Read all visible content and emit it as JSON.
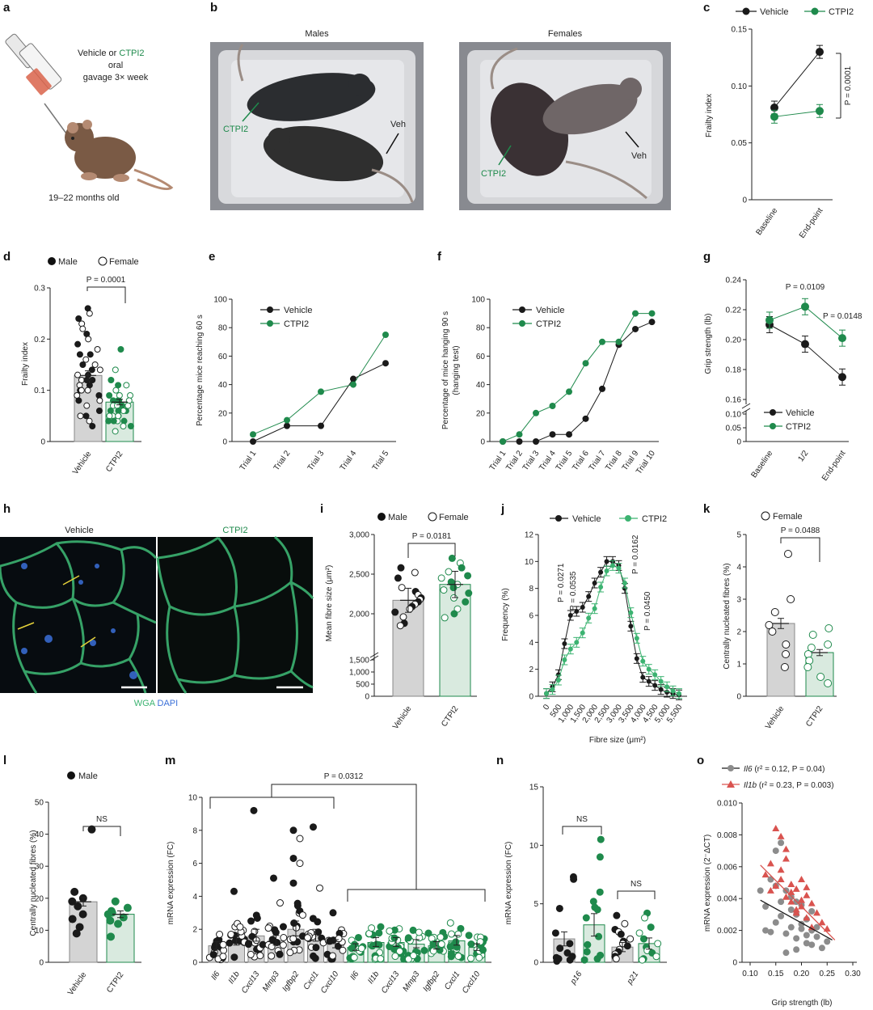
{
  "colors": {
    "vehicle": "#1a1a1a",
    "ctpi2": "#1f8a4c",
    "bar_vehicle": "#d4d4d4",
    "bar_ctpi2": "#d9eadf",
    "il1b_red": "#d9534f",
    "il6_grey": "#8c8c8c",
    "wga": "#3cb371",
    "dapi": "#3a6fd8"
  },
  "panels": {
    "a": {
      "label": "a",
      "line1": "Vehicle or ",
      "line1_green": "CTPI2",
      "line2": "oral",
      "line3": "gavage 3× week",
      "age": "19–22 months old"
    },
    "b": {
      "label": "b",
      "males": "Males",
      "females": "Females",
      "ctpi2": "CTPI2",
      "veh": "Veh"
    },
    "c": {
      "label": "c",
      "legend": [
        "Vehicle",
        "CTPI2"
      ],
      "ylabel": "Frailty index",
      "yticks": [
        "0",
        "0.05",
        "0.10",
        "0.15"
      ],
      "xticks": [
        "Baseline",
        "End-point"
      ],
      "pval": "P = 0.0001"
    },
    "d": {
      "label": "d",
      "legend": [
        "Male",
        "Female"
      ],
      "ylabel": "Frailty index",
      "yticks": [
        "0",
        "0.1",
        "0.2",
        "0.3"
      ],
      "xticks": [
        "Vehicle",
        "CTPI2"
      ],
      "pval": "P = 0.0001"
    },
    "e": {
      "label": "e",
      "legend": [
        "Vehicle",
        "CTPI2"
      ],
      "ylabel": "Percentage mice reaching 60 s",
      "yticks": [
        "0",
        "20",
        "40",
        "60",
        "80",
        "100"
      ],
      "xticks": [
        "Trial 1",
        "Trial 2",
        "Trial 3",
        "Trial 4",
        "Trial 5"
      ]
    },
    "f": {
      "label": "f",
      "legend": [
        "Vehicle",
        "CTPI2"
      ],
      "ylabel1": "Percentage of mice hanging 90 s",
      "ylabel2": "(hanging test)",
      "yticks": [
        "0",
        "20",
        "40",
        "60",
        "80",
        "100"
      ],
      "xticks": [
        "Trial 1",
        "Trial 2",
        "Trial 3",
        "Trial 4",
        "Trial 5",
        "Trial 6",
        "Trial 7",
        "Trial 8",
        "Trial 9",
        "Trial 10"
      ]
    },
    "g": {
      "label": "g",
      "legend": [
        "Vehicle",
        "CTPI2"
      ],
      "ylabel": "Grip strength (lb)",
      "yticks": [
        "0",
        "0.05",
        "0.10",
        "0.16",
        "0.18",
        "0.20",
        "0.22",
        "0.24"
      ],
      "xticks": [
        "Baseline",
        "1/2",
        "End-point"
      ],
      "pval1": "P = 0.0109",
      "pval2": "P = 0.0148"
    },
    "h": {
      "label": "h",
      "left_title": "Vehicle",
      "right_title": "CTPI2",
      "stain_wga": "WGA",
      "stain_dapi": "DAPI"
    },
    "i": {
      "label": "i",
      "legend": [
        "Male",
        "Female"
      ],
      "ylabel": "Mean fibre size (μm²)",
      "yticks": [
        "0",
        "500",
        "1,000",
        "1,500",
        "2,000",
        "2,500",
        "3,000"
      ],
      "xticks": [
        "Vehicle",
        "CTPI2"
      ],
      "pval": "P = 0.0181"
    },
    "j": {
      "label": "j",
      "legend": [
        "Vehicle",
        "CTPI2"
      ],
      "ylabel": "Frequency (%)",
      "xlabel": "Fibre size (μm²)",
      "yticks": [
        "0",
        "2",
        "4",
        "6",
        "8",
        "10",
        "12"
      ],
      "xticks": [
        "0",
        "500",
        "1,000",
        "1,500",
        "2,000",
        "2,500",
        "3,000",
        "3,500",
        "4,000",
        "4,500",
        "5,000",
        "5,500"
      ],
      "pvals": [
        "P = 0.0271",
        "P = 0.0535",
        "P = 0.0162",
        "P = 0.0450"
      ]
    },
    "k": {
      "label": "k",
      "legend": [
        "Female"
      ],
      "ylabel": "Centrally nucleated fibres (%)",
      "yticks": [
        "0",
        "1",
        "2",
        "3",
        "4",
        "5"
      ],
      "xticks": [
        "Vehicle",
        "CTPI2"
      ],
      "pval": "P = 0.0488"
    },
    "l": {
      "label": "l",
      "legend": [
        "Male"
      ],
      "ylabel": "Centrally nucleated fibres (%)",
      "yticks": [
        "0",
        "10",
        "20",
        "30",
        "40",
        "50"
      ],
      "xticks": [
        "Vehicle",
        "CTPI2"
      ],
      "ns": "NS"
    },
    "m": {
      "label": "m",
      "ylabel": "mRNA expression (FC)",
      "yticks": [
        "0",
        "2",
        "4",
        "6",
        "8",
        "10"
      ],
      "genes": [
        "Il6",
        "Il1b",
        "Cxcl13",
        "Mmp3",
        "Igfbp2",
        "Cxcl1",
        "Cxcl10"
      ],
      "pval": "P = 0.0312"
    },
    "n": {
      "label": "n",
      "ylabel": "mRNA expression (FC)",
      "yticks": [
        "0",
        "5",
        "10",
        "15"
      ],
      "genes": [
        "p16",
        "p21"
      ],
      "ns1": "NS",
      "ns2": "NS"
    },
    "o": {
      "label": "o",
      "legend_il6_gene": "Il6",
      "legend_il6_stats": " (r² = 0.12, P = 0.04)",
      "legend_il1b_gene": "Il1b",
      "legend_il1b_stats": " (r² = 0.23, P = 0.003)",
      "ylabel": "mRNA expression (2⁻ΔCT)",
      "xlabel": "Grip strength (lb)",
      "yticks": [
        "0",
        "0.002",
        "0.004",
        "0.006",
        "0.008",
        "0.010"
      ],
      "xticks": [
        "0.10",
        "0.15",
        "0.20",
        "0.25",
        "0.30"
      ]
    }
  },
  "chart_data": [
    {
      "panel": "c",
      "type": "line",
      "categories": [
        "Baseline",
        "End-point"
      ],
      "ylim": [
        0,
        0.15
      ],
      "series": [
        {
          "name": "Vehicle",
          "values": [
            0.081,
            0.13
          ]
        },
        {
          "name": "CTPI2",
          "values": [
            0.073,
            0.078
          ]
        }
      ]
    },
    {
      "panel": "d",
      "type": "bar",
      "categories": [
        "Vehicle",
        "CTPI2"
      ],
      "values": [
        0.129,
        0.077
      ],
      "ylim": [
        0,
        0.3
      ]
    },
    {
      "panel": "e",
      "type": "line",
      "categories": [
        "Trial 1",
        "Trial 2",
        "Trial 3",
        "Trial 4",
        "Trial 5"
      ],
      "ylim": [
        0,
        100
      ],
      "series": [
        {
          "name": "Vehicle",
          "values": [
            0,
            11,
            11,
            44,
            55
          ]
        },
        {
          "name": "CTPI2",
          "values": [
            5,
            15,
            35,
            40,
            75
          ]
        }
      ]
    },
    {
      "panel": "f",
      "type": "line",
      "categories": [
        "Trial 1",
        "Trial 2",
        "Trial 3",
        "Trial 4",
        "Trial 5",
        "Trial 6",
        "Trial 7",
        "Trial 8",
        "Trial 9",
        "Trial 10"
      ],
      "ylim": [
        0,
        100
      ],
      "series": [
        {
          "name": "Vehicle",
          "values": [
            0,
            0,
            0,
            5,
            5,
            16,
            37,
            68,
            79,
            84
          ]
        },
        {
          "name": "CTPI2",
          "values": [
            0,
            5,
            20,
            25,
            35,
            55,
            70,
            70,
            90,
            90
          ]
        }
      ]
    },
    {
      "panel": "g",
      "type": "line",
      "categories": [
        "Baseline",
        "1/2",
        "End-point"
      ],
      "series": [
        {
          "name": "Vehicle",
          "values": [
            0.21,
            0.197,
            0.175
          ]
        },
        {
          "name": "CTPI2",
          "values": [
            0.213,
            0.222,
            0.201
          ]
        }
      ]
    },
    {
      "panel": "i",
      "type": "bar",
      "categories": [
        "Vehicle",
        "CTPI2"
      ],
      "values": [
        2170,
        2370
      ],
      "ylim": [
        0,
        3000
      ]
    },
    {
      "panel": "j",
      "type": "line",
      "ylim": [
        0,
        12
      ],
      "x": [
        0,
        250,
        500,
        750,
        1000,
        1250,
        1500,
        1750,
        2000,
        2250,
        2500,
        2750,
        3000,
        3250,
        3500,
        3750,
        4000,
        4250,
        4500,
        4750,
        5000,
        5250,
        5500
      ],
      "series": [
        {
          "name": "Vehicle",
          "values": [
            0.2,
            0.7,
            1.6,
            3.9,
            6.0,
            6.3,
            6.6,
            7.4,
            8.4,
            9.2,
            10.0,
            10.0,
            9.7,
            8.0,
            5.2,
            2.8,
            1.4,
            1.1,
            0.8,
            0.5,
            0.3,
            0.2,
            0.1
          ]
        },
        {
          "name": "CTPI2",
          "values": [
            0.2,
            0.5,
            1.2,
            2.7,
            3.5,
            4.0,
            4.7,
            5.8,
            6.5,
            8.1,
            9.3,
            9.7,
            9.5,
            8.4,
            6.2,
            4.3,
            2.6,
            2.0,
            1.6,
            1.1,
            0.7,
            0.4,
            0.2
          ]
        }
      ]
    },
    {
      "panel": "k",
      "type": "bar",
      "categories": [
        "Vehicle",
        "CTPI2"
      ],
      "values": [
        2.25,
        1.35
      ],
      "ylim": [
        0,
        5
      ]
    },
    {
      "panel": "l",
      "type": "bar",
      "categories": [
        "Vehicle",
        "CTPI2"
      ],
      "values": [
        18.9,
        15.0
      ],
      "ylim": [
        0,
        50
      ]
    },
    {
      "panel": "m",
      "type": "bar",
      "categories": [
        "Il6",
        "Il1b",
        "Cxcl13",
        "Mmp3",
        "Igfbp2",
        "Cxcl1",
        "Cxcl10"
      ],
      "ylim": [
        0,
        10
      ],
      "series": [
        {
          "name": "Vehicle",
          "values": [
            1.0,
            1.3,
            1.6,
            1.3,
            2.0,
            1.6,
            1.1
          ]
        },
        {
          "name": "CTPI2",
          "values": [
            0.9,
            1.2,
            1.2,
            1.1,
            1.0,
            1.3,
            0.9
          ]
        }
      ]
    },
    {
      "panel": "n",
      "type": "bar",
      "categories": [
        "p16",
        "p21"
      ],
      "ylim": [
        0,
        15
      ],
      "series": [
        {
          "name": "Vehicle",
          "values": [
            2.0,
            1.3
          ]
        },
        {
          "name": "CTPI2",
          "values": [
            3.2,
            1.6
          ]
        }
      ]
    },
    {
      "panel": "o",
      "type": "scatter",
      "xlim": [
        0.1,
        0.3
      ],
      "ylim": [
        0,
        0.01
      ],
      "series": [
        {
          "name": "Il6",
          "fit": [
            [
              0.12,
              0.0039
            ],
            [
              0.26,
              0.0014
            ]
          ],
          "x": [
            0.12,
            0.13,
            0.14,
            0.15,
            0.15,
            0.16,
            0.16,
            0.17,
            0.17,
            0.18,
            0.18,
            0.19,
            0.19,
            0.2,
            0.2,
            0.21,
            0.21,
            0.22,
            0.22,
            0.23,
            0.24,
            0.25,
            0.14,
            0.16,
            0.18,
            0.2,
            0.22,
            0.17,
            0.19,
            0.21,
            0.15,
            0.23,
            0.13,
            0.19
          ],
          "y": [
            0.0045,
            0.0035,
            0.0052,
            0.007,
            0.0025,
            0.0075,
            0.0038,
            0.0045,
            0.0018,
            0.0033,
            0.0022,
            0.003,
            0.0015,
            0.0036,
            0.0021,
            0.0027,
            0.0012,
            0.0032,
            0.002,
            0.0016,
            0.0009,
            0.0013,
            0.0019,
            0.0029,
            0.0041,
            0.0024,
            0.0011,
            0.0006,
            0.0038,
            0.0017,
            0.0048,
            0.0022,
            0.002,
            0.0008
          ]
        },
        {
          "name": "Il1b",
          "fit": [
            [
              0.12,
              0.0061
            ],
            [
              0.265,
              0.0014
            ]
          ],
          "x": [
            0.13,
            0.14,
            0.15,
            0.15,
            0.16,
            0.16,
            0.17,
            0.17,
            0.18,
            0.18,
            0.19,
            0.19,
            0.2,
            0.2,
            0.21,
            0.21,
            0.22,
            0.22,
            0.23,
            0.24,
            0.25,
            0.16,
            0.18,
            0.2,
            0.17,
            0.19,
            0.14,
            0.21
          ],
          "y": [
            0.0055,
            0.0062,
            0.0084,
            0.0048,
            0.0079,
            0.0052,
            0.0065,
            0.0041,
            0.0049,
            0.0038,
            0.0046,
            0.0031,
            0.0052,
            0.0035,
            0.0042,
            0.0028,
            0.0037,
            0.0022,
            0.0031,
            0.0025,
            0.0021,
            0.0058,
            0.0044,
            0.0039,
            0.0071,
            0.0033,
            0.0045,
            0.0047
          ]
        }
      ]
    }
  ]
}
